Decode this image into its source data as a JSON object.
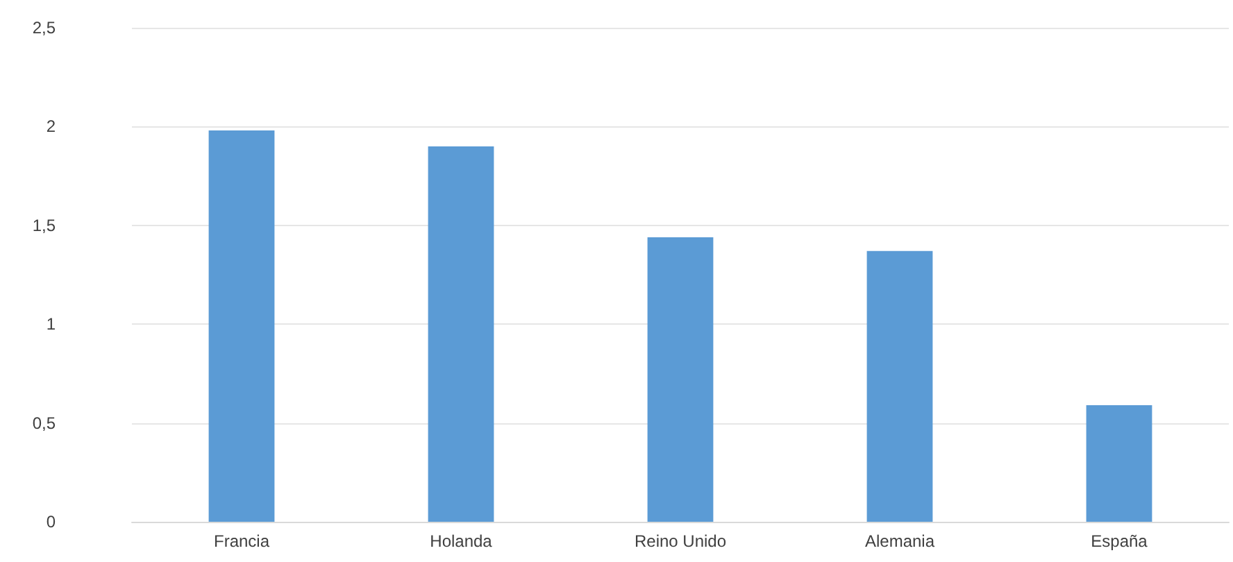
{
  "chart_data": {
    "type": "bar",
    "categories": [
      "Francia",
      "Holanda",
      "Reino Unido",
      "Alemania",
      "España"
    ],
    "values": [
      1.98,
      1.9,
      1.44,
      1.37,
      0.59
    ],
    "color": "#5b9bd5",
    "ylim": [
      0,
      2.5
    ],
    "yticks": [
      {
        "value": 0,
        "label": "0"
      },
      {
        "value": 0.5,
        "label": "0,5"
      },
      {
        "value": 1,
        "label": "1"
      },
      {
        "value": 1.5,
        "label": "1,5"
      },
      {
        "value": 2,
        "label": "2"
      },
      {
        "value": 2.5,
        "label": "2,5"
      }
    ],
    "grid": true
  }
}
